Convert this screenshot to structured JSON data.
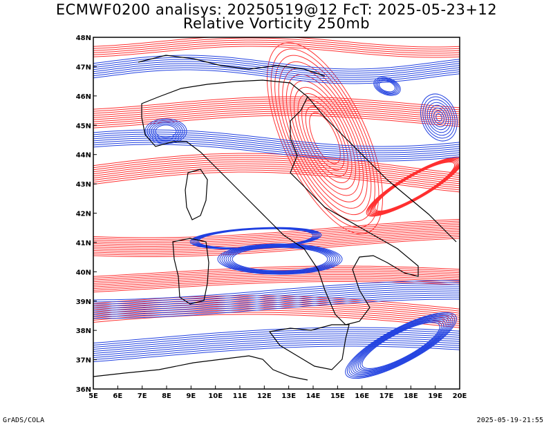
{
  "header": {
    "line1": "ECMWF0200 analisys: 20250519@12 FcT: 2025-05-23+12",
    "line2": "Relative Vorticity 250mb"
  },
  "footer": {
    "left": "GrADS/COLA",
    "right": "2025-05-19-21:55"
  },
  "map": {
    "lon_range": [
      5,
      20
    ],
    "lat_range": [
      36,
      48
    ],
    "lon_ticks": [
      "5E",
      "6E",
      "7E",
      "8E",
      "9E",
      "10E",
      "11E",
      "12E",
      "13E",
      "14E",
      "15E",
      "16E",
      "17E",
      "18E",
      "19E",
      "20E"
    ],
    "lat_ticks": [
      "36N",
      "37N",
      "38N",
      "39N",
      "40N",
      "41N",
      "42N",
      "43N",
      "44N",
      "45N",
      "46N",
      "47N",
      "48N"
    ],
    "colors": {
      "positive": "#ff3030",
      "negative": "#2040e0",
      "coast": "#000000",
      "border": "#888888"
    }
  }
}
